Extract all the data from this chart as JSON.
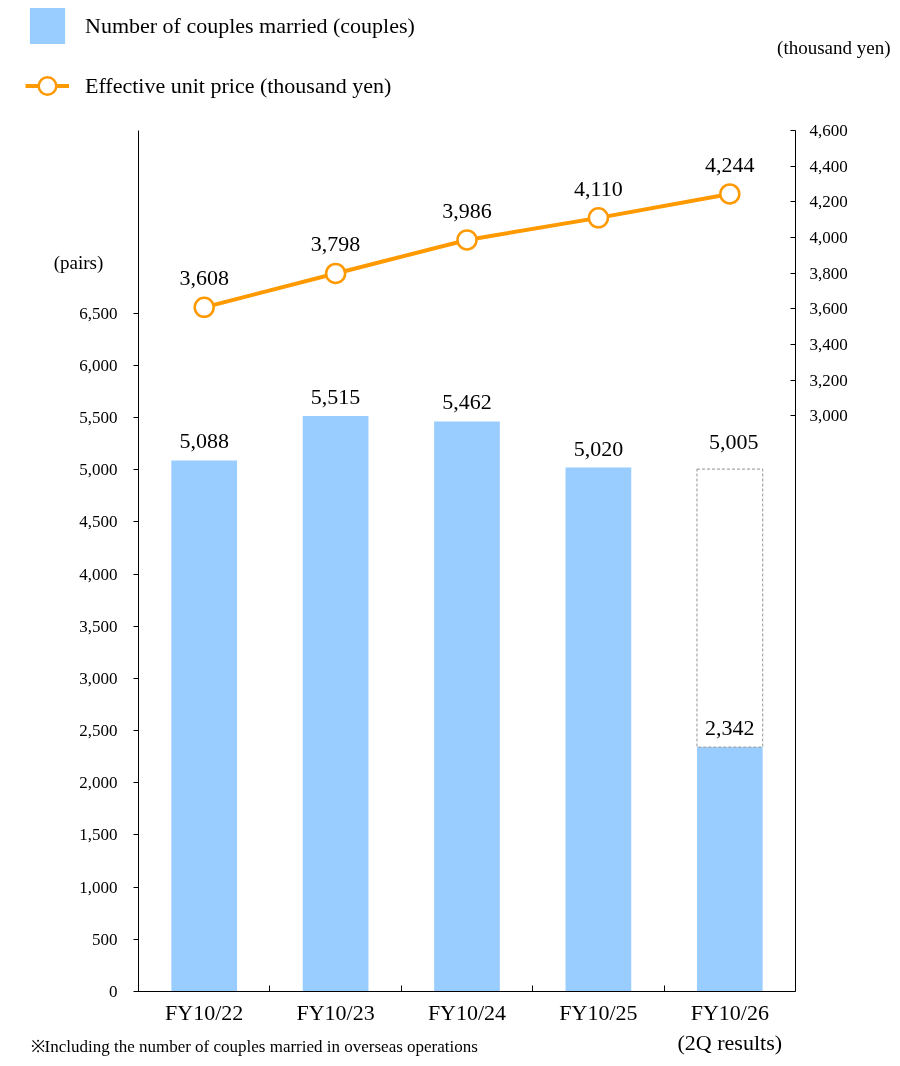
{
  "chart_data": {
    "type": "bar",
    "stacked": true,
    "categories": [
      "FY10/22",
      "FY10/23",
      "FY10/24",
      "FY10/25",
      "FY10/26\n(2Q results)"
    ],
    "series": [
      {
        "name": "Number of couples married (couples)",
        "color": "#99ccff",
        "values": [
          5088,
          5515,
          5462,
          5020,
          2342
        ],
        "value_labels": [
          "5,088",
          "5,515",
          "5,462",
          "5,020",
          "2,342"
        ]
      },
      {
        "color": "#a6a6a6",
        "line_style": "dashed",
        "values": [
          null,
          null,
          null,
          null,
          2663
        ]
      },
      {
        "name": "Effective unit price (thousand yen)",
        "type": "line",
        "axis": "y2",
        "color": "#ff9900",
        "marker": "circle",
        "values": [
          3608,
          3798,
          3986,
          4110,
          4244
        ],
        "value_labels": [
          "3,608",
          "3,798",
          "3,986",
          "4,110",
          "4,244"
        ]
      }
    ],
    "totals": [
      null,
      null,
      null,
      null,
      "5,005"
    ],
    "ylim": [
      0,
      8250
    ],
    "yticks": [
      0,
      500,
      {
        "value": 1000,
        "label": "1,000"
      },
      {
        "value": 1500,
        "label": "1,500"
      },
      {
        "value": 2000,
        "label": "2,000"
      },
      {
        "value": 2500,
        "label": "2,500"
      },
      {
        "value": 3000,
        "label": "3,000"
      },
      {
        "value": 3500,
        "label": "3,500"
      },
      {
        "value": 4000,
        "label": "4,000"
      },
      {
        "value": 4500,
        "label": "4,500"
      },
      {
        "value": 5000,
        "label": "5,000"
      },
      {
        "value": 5500,
        "label": "5,500"
      },
      {
        "value": 6000,
        "label": "6,000"
      },
      {
        "value": 6500,
        "label": "6,500"
      }
    ],
    "y2lim": [
      -230,
      4600
    ],
    "y2ticks": [
      {
        "value": 3000,
        "label": "3,000"
      },
      {
        "value": 3200,
        "label": "3,200"
      },
      {
        "value": 3400,
        "label": "3,400"
      },
      {
        "value": 3600,
        "label": "3,600"
      },
      {
        "value": 3800,
        "label": "3,800"
      },
      {
        "value": 4000,
        "label": "4,000"
      },
      {
        "value": 4200,
        "label": "4,200"
      },
      {
        "value": 4400,
        "label": "4,400"
      },
      {
        "value": 4600,
        "label": "4,600"
      }
    ],
    "ylabel": "(pairs)",
    "y2label": "(thousand yen)",
    "legend": "top left",
    "annotations": [
      "※Including the number of couples married in overseas operations"
    ]
  }
}
